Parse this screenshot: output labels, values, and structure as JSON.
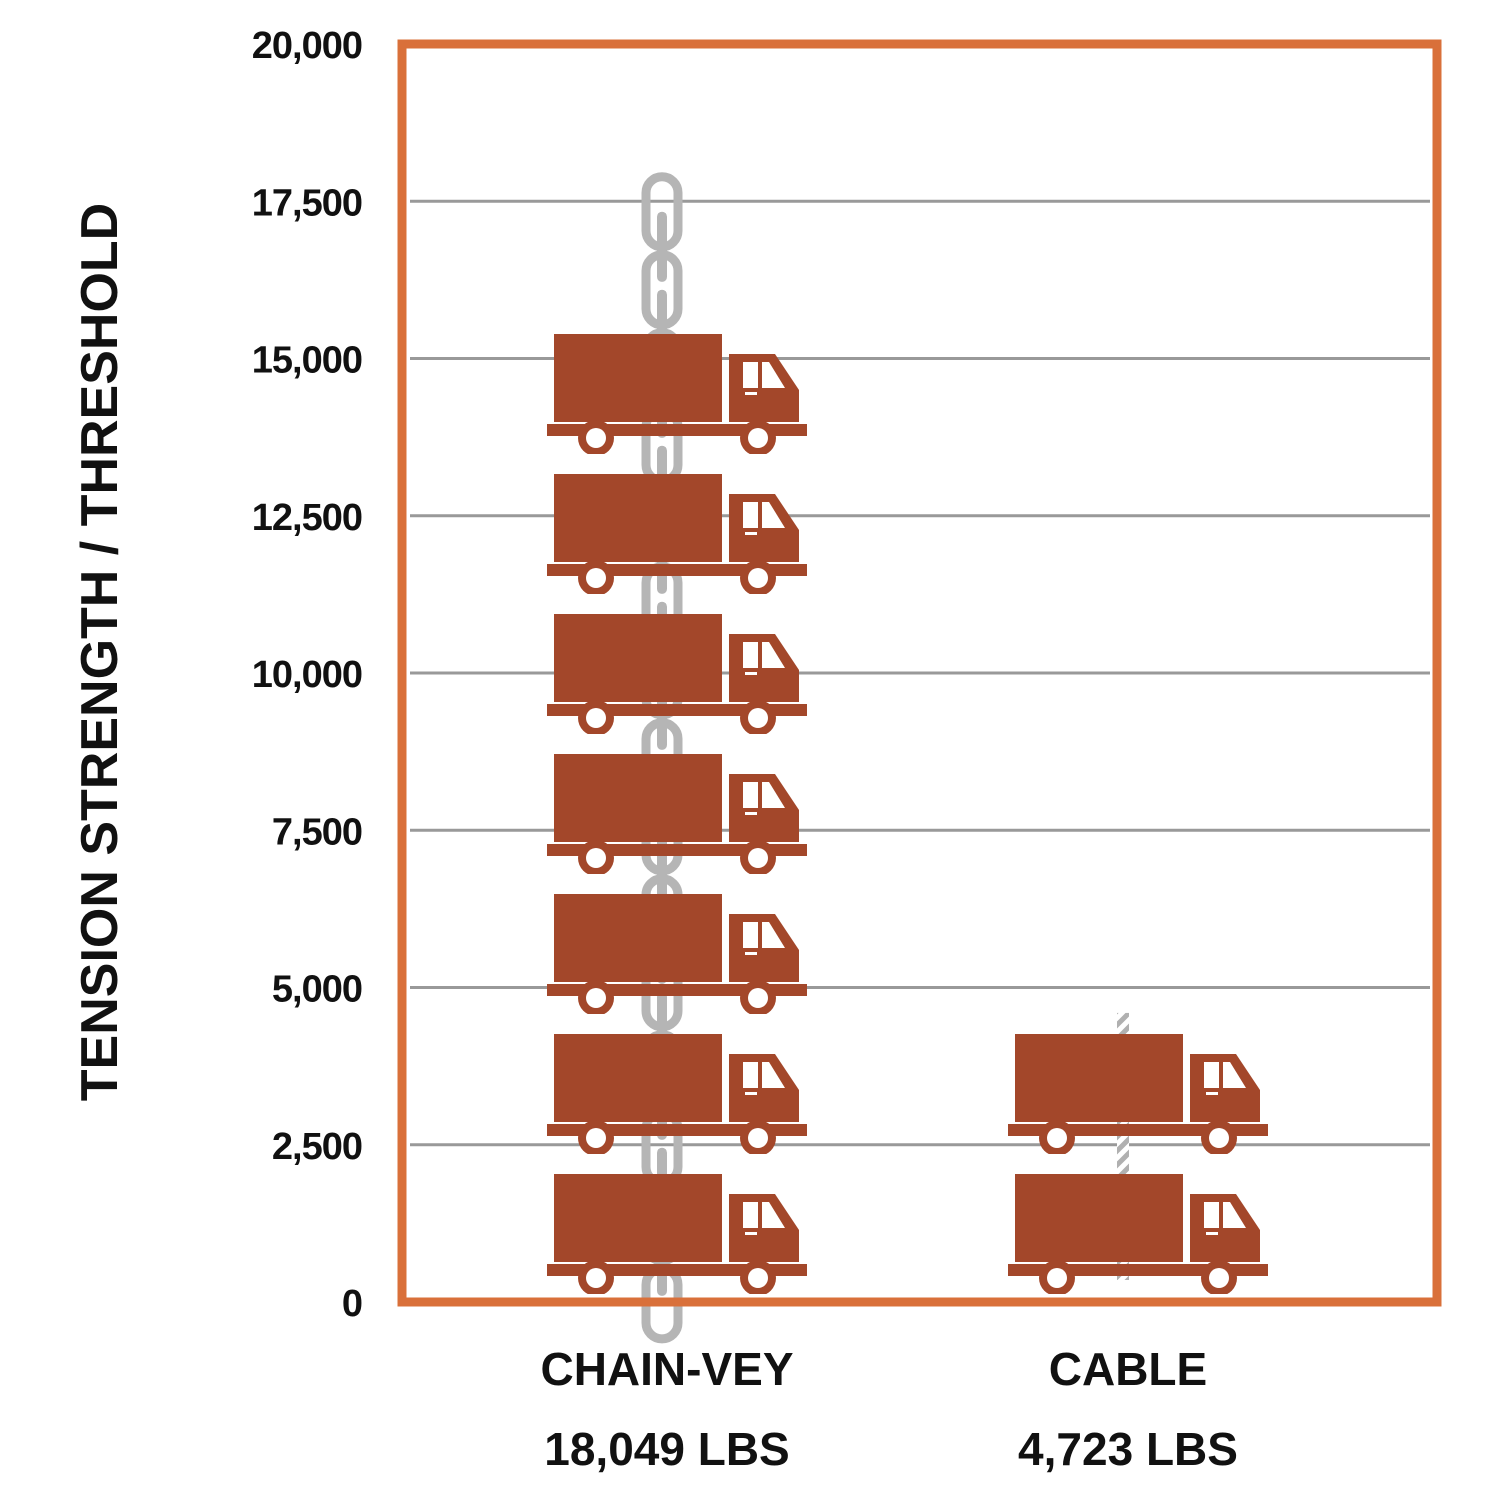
{
  "chart_data": {
    "type": "bar",
    "ylabel": "TENSION STRENGTH / THRESHOLD",
    "ylim": [
      0,
      20000
    ],
    "yticks": [
      0,
      2500,
      5000,
      7500,
      10000,
      12500,
      15000,
      17500,
      20000
    ],
    "ytick_labels": [
      "0",
      "2,500",
      "5,000",
      "7,500",
      "10,000",
      "12,500",
      "15,000",
      "17,500",
      "20,000"
    ],
    "grid": true,
    "categories": [
      "CHAIN-VEY",
      "CABLE"
    ],
    "values": [
      18049,
      4723
    ],
    "value_labels": [
      "18,049 LBS",
      "4,723 LBS"
    ],
    "truck_counts": [
      7,
      2
    ],
    "bar_style": [
      "chain",
      "cable"
    ]
  },
  "colors": {
    "frame": "#d9703a",
    "truck": "#a3472a",
    "chain": "#b5b5b5",
    "grid": "#999999",
    "text": "#111111"
  },
  "icons": {
    "unit": "truck-icon",
    "chain": "chain-icon",
    "cable": "cable-icon"
  }
}
